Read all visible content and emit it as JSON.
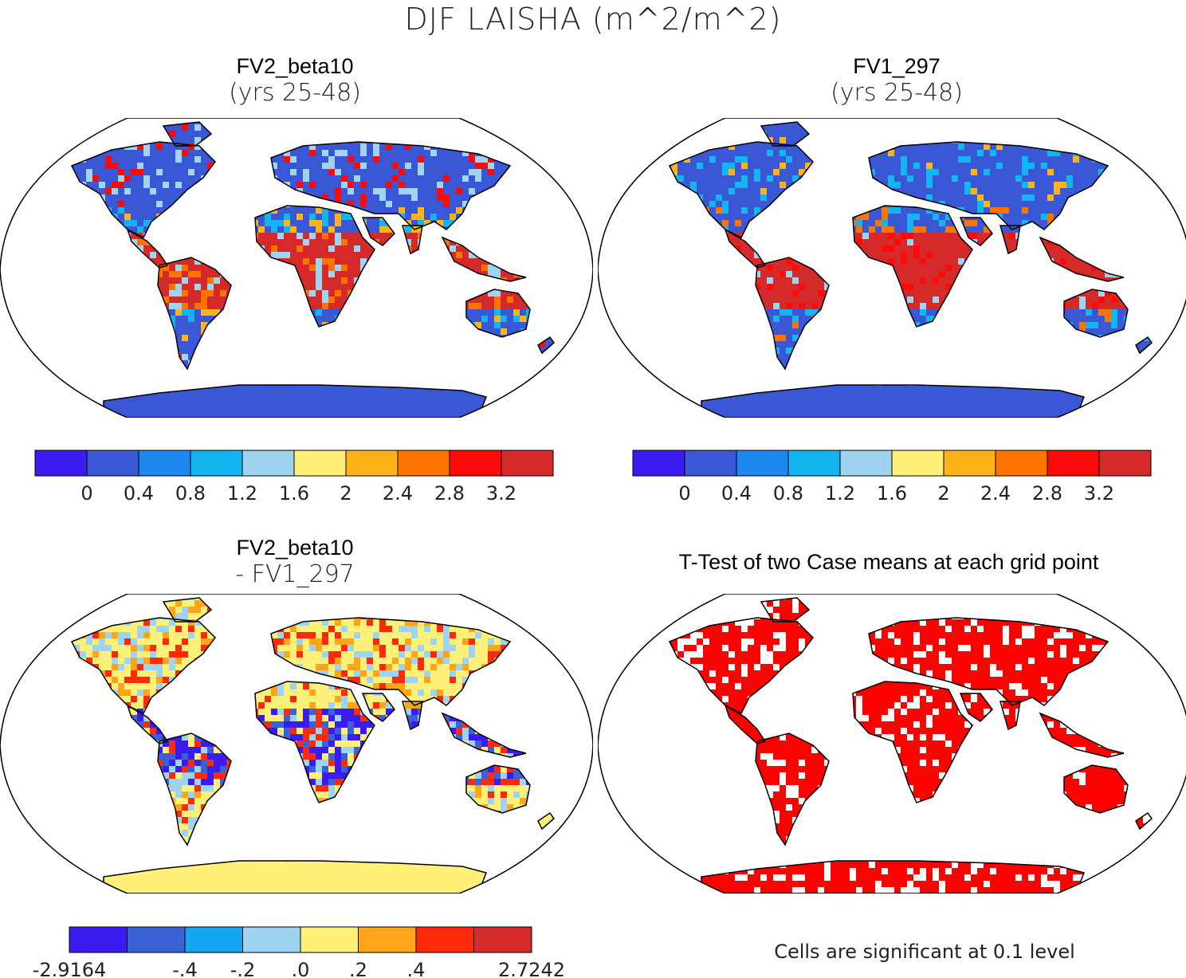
{
  "figure": {
    "title": "DJF LAISHA (m^2/m^2)"
  },
  "chart_data": [
    {
      "type": "heatmap",
      "panel": "top-left",
      "title": "FV2_beta10",
      "subtitle": "(yrs 25-48)",
      "variable": "LAISHA",
      "season": "DJF",
      "colorbar": {
        "colors": [
          "#3b1cf0",
          "#3a57d6",
          "#1e88f0",
          "#14b4f0",
          "#9ed4f0",
          "#fff07a",
          "#ffb31a",
          "#ff7400",
          "#ff0a0a",
          "#d42a2a"
        ],
        "tick_labels": [
          "0",
          "0.4",
          "0.8",
          "1.2",
          "1.6",
          "2",
          "2.4",
          "2.8",
          "3.2"
        ]
      }
    },
    {
      "type": "heatmap",
      "panel": "top-right",
      "title": "FV1_297",
      "subtitle": "(yrs 25-48)",
      "variable": "LAISHA",
      "season": "DJF",
      "colorbar": {
        "colors": [
          "#3b1cf0",
          "#3a57d6",
          "#1e88f0",
          "#14b4f0",
          "#9ed4f0",
          "#fff07a",
          "#ffb31a",
          "#ff7400",
          "#ff0a0a",
          "#d42a2a"
        ],
        "tick_labels": [
          "0",
          "0.4",
          "0.8",
          "1.2",
          "1.6",
          "2",
          "2.4",
          "2.8",
          "3.2"
        ]
      }
    },
    {
      "type": "heatmap",
      "panel": "bottom-left",
      "title": "FV2_beta10",
      "subtitle": "- FV1_297",
      "variable": "LAISHA difference",
      "colorbar": {
        "colors": [
          "#3b1cf0",
          "#3a62d6",
          "#14a6f0",
          "#9ed4f0",
          "#fff07a",
          "#ffa51a",
          "#ff2a0a",
          "#d42a2a"
        ],
        "tick_labels": [
          "-2.9164",
          "-.4",
          "-.2",
          ".0",
          ".2",
          ".4",
          "2.7242"
        ]
      }
    },
    {
      "type": "heatmap",
      "panel": "bottom-right",
      "title": "T-Test of two Case means at each grid point",
      "significance_color": "#ff0000",
      "note": "Cells are significant at 0.1 level"
    }
  ]
}
